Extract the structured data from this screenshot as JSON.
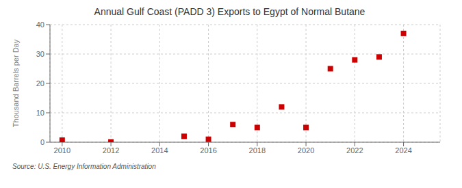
{
  "chart_data": {
    "type": "scatter",
    "title": "Annual Gulf Coast (PADD 3) Exports to Egypt of Normal Butane",
    "ylabel": "Thousand Barrels per Day",
    "annotation": "Source: U.S. Energy Information Administration",
    "x": [
      2010,
      2012,
      2015,
      2016,
      2017,
      2018,
      2019,
      2020,
      2021,
      2022,
      2023,
      2024
    ],
    "values": [
      0.7,
      0.1,
      2.0,
      1.0,
      6.0,
      5.0,
      12.0,
      5.0,
      25.0,
      28.0,
      29.0,
      37.0
    ],
    "color": "#cc0000",
    "marker": "square",
    "xlim": [
      2009.5,
      2025.5
    ],
    "xticks": [
      2010,
      2012,
      2014,
      2016,
      2018,
      2020,
      2022,
      2024
    ],
    "ylim": [
      0,
      40
    ],
    "yticks": [
      0,
      10,
      20,
      30,
      40
    ],
    "grid": true
  }
}
